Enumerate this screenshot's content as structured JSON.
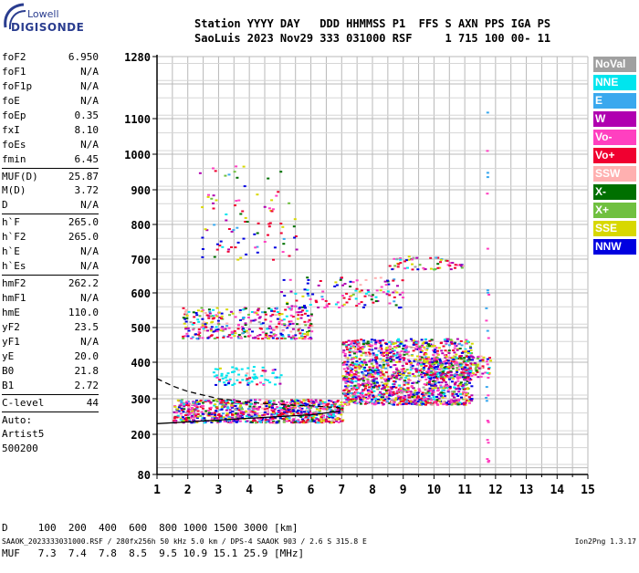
{
  "logo": {
    "top": "Lowell",
    "bottom": "DIGISONDE"
  },
  "header": {
    "line1": "Station YYYY DAY   DDD HHMMSS P1  FFS S AXN PPS IGA PS",
    "line2": "SaoLuis 2023 Nov29 333 031000 RSF     1 715 100 00- 11"
  },
  "parameters": [
    {
      "name": "foF2",
      "value": "6.950"
    },
    {
      "name": "foF1",
      "value": "N/A"
    },
    {
      "name": "foF1p",
      "value": "N/A"
    },
    {
      "name": "foE",
      "value": "N/A"
    },
    {
      "name": "foEp",
      "value": "0.35"
    },
    {
      "name": "fxI",
      "value": "8.10"
    },
    {
      "name": "foEs",
      "value": "N/A"
    },
    {
      "name": "fmin",
      "value": "6.45"
    },
    {
      "sep": true
    },
    {
      "name": "MUF(D)",
      "value": "25.87"
    },
    {
      "name": "M(D)",
      "value": "3.72"
    },
    {
      "name": "D",
      "value": "N/A"
    },
    {
      "sep": true
    },
    {
      "name": "h`F",
      "value": "265.0"
    },
    {
      "name": "h`F2",
      "value": "265.0"
    },
    {
      "name": "h`E",
      "value": "N/A"
    },
    {
      "name": "h`Es",
      "value": "N/A"
    },
    {
      "sep": true
    },
    {
      "name": "hmF2",
      "value": "262.2"
    },
    {
      "name": "hmF1",
      "value": "N/A"
    },
    {
      "name": "hmE",
      "value": "110.0"
    },
    {
      "name": "yF2",
      "value": "23.5"
    },
    {
      "name": "yF1",
      "value": "N/A"
    },
    {
      "name": "yE",
      "value": "20.0"
    },
    {
      "name": "B0",
      "value": "21.8"
    },
    {
      "name": "B1",
      "value": "2.72"
    },
    {
      "sep": true
    },
    {
      "name": "C-level",
      "value": "44"
    },
    {
      "sep": true
    },
    {
      "text": "Auto:"
    },
    {
      "text": "Artist5"
    },
    {
      "text": "500200"
    }
  ],
  "muf_table": {
    "d_row": "D     100  200  400  600  800 1000 1500 3000 [km]",
    "muf_row": "MUF   7.3  7.4  7.8  8.5  9.5 10.9 15.1 25.9 [MHz]"
  },
  "footer": "SAAOK_2023333031000.RSF / 280fx256h 50 kHz 5.0 km / DPS-4 SAAOK 903 / 2.6 S 315.8 E",
  "version": "Ion2Png 1.3.17",
  "legend": [
    {
      "label": "NoVal",
      "color": "#a0a0a0"
    },
    {
      "label": "NNE",
      "color": "#00e5ee"
    },
    {
      "label": "E",
      "color": "#3aa8ee"
    },
    {
      "label": "W",
      "color": "#b000b0"
    },
    {
      "label": "Vo-",
      "color": "#ff40c0"
    },
    {
      "label": "Vo+",
      "color": "#f00030"
    },
    {
      "label": "SSW",
      "color": "#ffb0b0"
    },
    {
      "label": "X-",
      "color": "#007000"
    },
    {
      "label": "X+",
      "color": "#70c040"
    },
    {
      "label": "SSE",
      "color": "#d8d800"
    },
    {
      "label": "NNW",
      "color": "#0000e0"
    }
  ],
  "chart_data": {
    "type": "scatter",
    "x_ticks": [
      "1",
      "2",
      "3",
      "4",
      "5",
      "6",
      "7",
      "8",
      "9",
      "10",
      "11",
      "12",
      "13",
      "14",
      "15"
    ],
    "xlim": [
      1,
      15
    ],
    "x_minor_step": 0.5,
    "y_ticks": [
      "80",
      "200",
      "300",
      "400",
      "500",
      "600",
      "700",
      "800",
      "900",
      "1000",
      "1100",
      "1280"
    ],
    "y_gridlines": [
      100,
      200,
      300,
      400,
      500,
      600,
      700,
      800,
      900,
      1000,
      1100,
      1200,
      1280
    ],
    "y_scale": "virtual height [km], nonlinear (compressed at low heights)",
    "ylim": [
      80,
      1280
    ],
    "grid": true,
    "echo_regions": [
      {
        "name": "F-trace O",
        "x": [
          1.5,
          7.0
        ],
        "y": [
          235,
          300
        ],
        "density": 900
      },
      {
        "name": "F-trace main",
        "x": [
          7.0,
          11.2
        ],
        "y": [
          285,
          470
        ],
        "density": 1500
      },
      {
        "name": "F-trace high",
        "x": [
          9.5,
          11.8
        ],
        "y": [
          360,
          420
        ],
        "density": 200
      },
      {
        "name": "Cyan band",
        "x": [
          2.8,
          5.0
        ],
        "y": [
          340,
          390
        ],
        "density": 80
      },
      {
        "name": "2nd hop",
        "x": [
          1.8,
          6.0
        ],
        "y": [
          470,
          560
        ],
        "density": 350
      },
      {
        "name": "2nd hop cont",
        "x": [
          5.0,
          9.0
        ],
        "y": [
          560,
          650
        ],
        "density": 120
      },
      {
        "name": "3rd hop",
        "x": [
          8.5,
          11.0
        ],
        "y": [
          670,
          710
        ],
        "density": 60
      },
      {
        "name": "Diffuse 3rd",
        "x": [
          2.3,
          5.5
        ],
        "y": [
          700,
          970
        ],
        "density": 90
      },
      {
        "name": "Vertical line 11.7",
        "x": [
          11.65,
          11.75
        ],
        "y": [
          120,
          1280
        ],
        "density": 25
      }
    ],
    "profile_curves": [
      {
        "name": "o-trace fit",
        "style": "solid",
        "color": "#000000",
        "points": [
          [
            1,
            230
          ],
          [
            2,
            235
          ],
          [
            3,
            240
          ],
          [
            4,
            245
          ],
          [
            5,
            250
          ],
          [
            6,
            255
          ],
          [
            6.95,
            265
          ]
        ]
      },
      {
        "name": "dashed upper",
        "style": "dashed",
        "color": "#000000",
        "points": [
          [
            1,
            355
          ],
          [
            1.5,
            335
          ],
          [
            2,
            320
          ],
          [
            3,
            300
          ],
          [
            4,
            290
          ],
          [
            5,
            283
          ],
          [
            6,
            280
          ],
          [
            6.95,
            275
          ]
        ]
      }
    ]
  }
}
